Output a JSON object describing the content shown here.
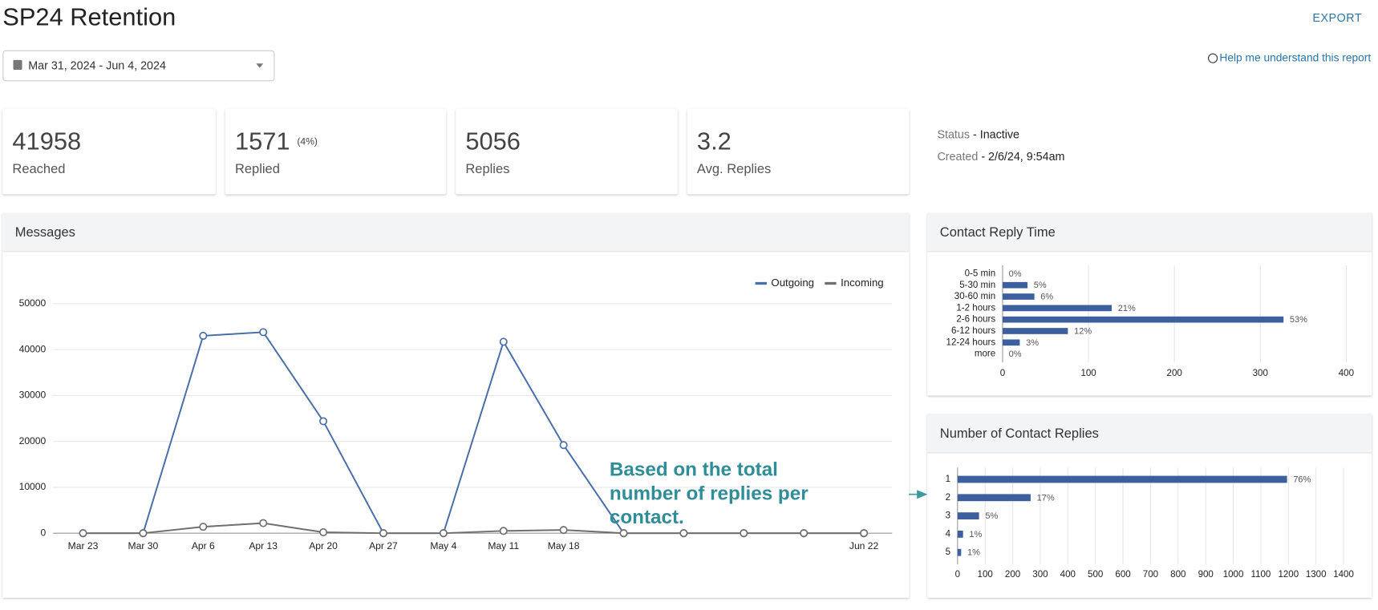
{
  "header": {
    "title": "SP24 Retention",
    "export": "EXPORT",
    "date_range": "Mar 31, 2024 - Jun 4, 2024",
    "help": "Help me understand this report"
  },
  "stats": [
    {
      "value": 41958,
      "label": "Reached"
    },
    {
      "value": 1571,
      "note": "(4%)",
      "label": "Replied"
    },
    {
      "value": 5056,
      "label": "Replies"
    },
    {
      "value": 3.2,
      "label": "Avg. Replies"
    }
  ],
  "status": {
    "status_label": "Status",
    "status": "- Inactive",
    "created_label": "Created",
    "created": "- 2/6/24, 9:54am"
  },
  "callout": "Based on the total number of replies per contact.",
  "chart_data": [
    {
      "type": "line",
      "title": "Messages",
      "categories": [
        "Mar 23",
        "Mar 30",
        "Apr 6",
        "Apr 13",
        "Apr 20",
        "Apr 27",
        "May 4",
        "May 11",
        "May 18",
        null,
        null,
        null,
        null,
        "Jun 22"
      ],
      "series": [
        {
          "name": "Outgoing",
          "color": "#4a6ea9",
          "values": [
            0,
            0,
            43000,
            43800,
            24400,
            0,
            0,
            41700,
            19200,
            0,
            0,
            0,
            0,
            0
          ]
        },
        {
          "name": "Incoming",
          "color": "#6f6f6f",
          "values": [
            0,
            0,
            1400,
            2200,
            200,
            0,
            0,
            500,
            700,
            0,
            0,
            0,
            0,
            0
          ]
        }
      ],
      "ylim": [
        0,
        50000
      ],
      "yticks": [
        0,
        10000,
        20000,
        30000,
        40000,
        50000
      ],
      "grid": true,
      "legend": "top-right"
    },
    {
      "type": "bar",
      "orientation": "horizontal",
      "title": "Contact Reply Time",
      "categories": [
        "0-5 min",
        "5-30 min",
        "30-60 min",
        "1-2 hours",
        "2-6 hours",
        "6-12 hours",
        "12-24 hours",
        "more"
      ],
      "values": [
        0,
        29,
        37,
        127,
        327,
        76,
        20,
        0
      ],
      "percent_labels": [
        "0%",
        "5%",
        "6%",
        "21%",
        "53%",
        "12%",
        "3%",
        "0%"
      ],
      "color": "#3e5f9e",
      "xlim": [
        0,
        400
      ],
      "xticks": [
        0,
        100,
        200,
        300,
        400
      ],
      "grid": true
    },
    {
      "type": "bar",
      "orientation": "horizontal",
      "title": "Number of Contact Replies",
      "categories": [
        "1",
        "2",
        "3",
        "4",
        "5"
      ],
      "values": [
        1195,
        265,
        78,
        20,
        13
      ],
      "percent_labels": [
        "76%",
        "17%",
        "5%",
        "1%",
        "1%"
      ],
      "color": "#3e5f9e",
      "xlim": [
        0,
        1400
      ],
      "xticks": [
        0,
        100,
        200,
        300,
        400,
        500,
        600,
        700,
        800,
        900,
        1000,
        1100,
        1200,
        1300,
        1400
      ],
      "grid": true
    }
  ]
}
